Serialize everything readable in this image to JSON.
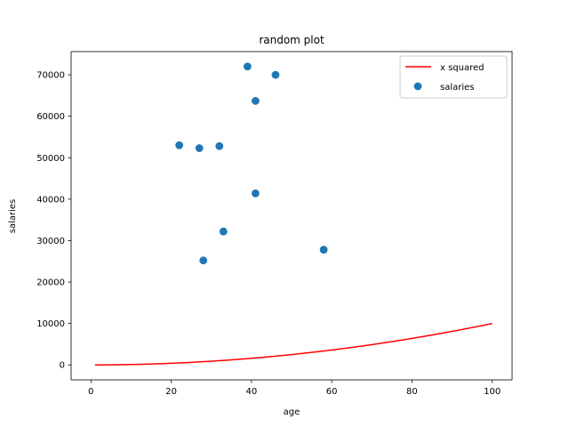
{
  "chart_data": {
    "type": "scatter",
    "title": "random plot",
    "xlabel": "age",
    "ylabel": "salaries",
    "xlim": [
      -4.95,
      104.95
    ],
    "ylim": [
      -3600,
      75600
    ],
    "xticks": [
      0,
      20,
      40,
      60,
      80,
      100
    ],
    "yticks": [
      0,
      10000,
      20000,
      30000,
      40000,
      50000,
      60000,
      70000
    ],
    "grid": false,
    "legend_position": "top-right",
    "series": [
      {
        "name": "x squared",
        "type": "line",
        "color": "#ff0000",
        "function": "x^2",
        "x_range": [
          1,
          100
        ]
      },
      {
        "name": "salaries",
        "type": "scatter",
        "color": "#1f77b4",
        "points": [
          {
            "x": 22,
            "y": 53000
          },
          {
            "x": 27,
            "y": 52300
          },
          {
            "x": 28,
            "y": 25200
          },
          {
            "x": 32,
            "y": 52800
          },
          {
            "x": 33,
            "y": 32200
          },
          {
            "x": 39,
            "y": 72000
          },
          {
            "x": 41,
            "y": 63700
          },
          {
            "x": 41,
            "y": 41400
          },
          {
            "x": 46,
            "y": 70000
          },
          {
            "x": 58,
            "y": 27800
          }
        ]
      }
    ]
  }
}
